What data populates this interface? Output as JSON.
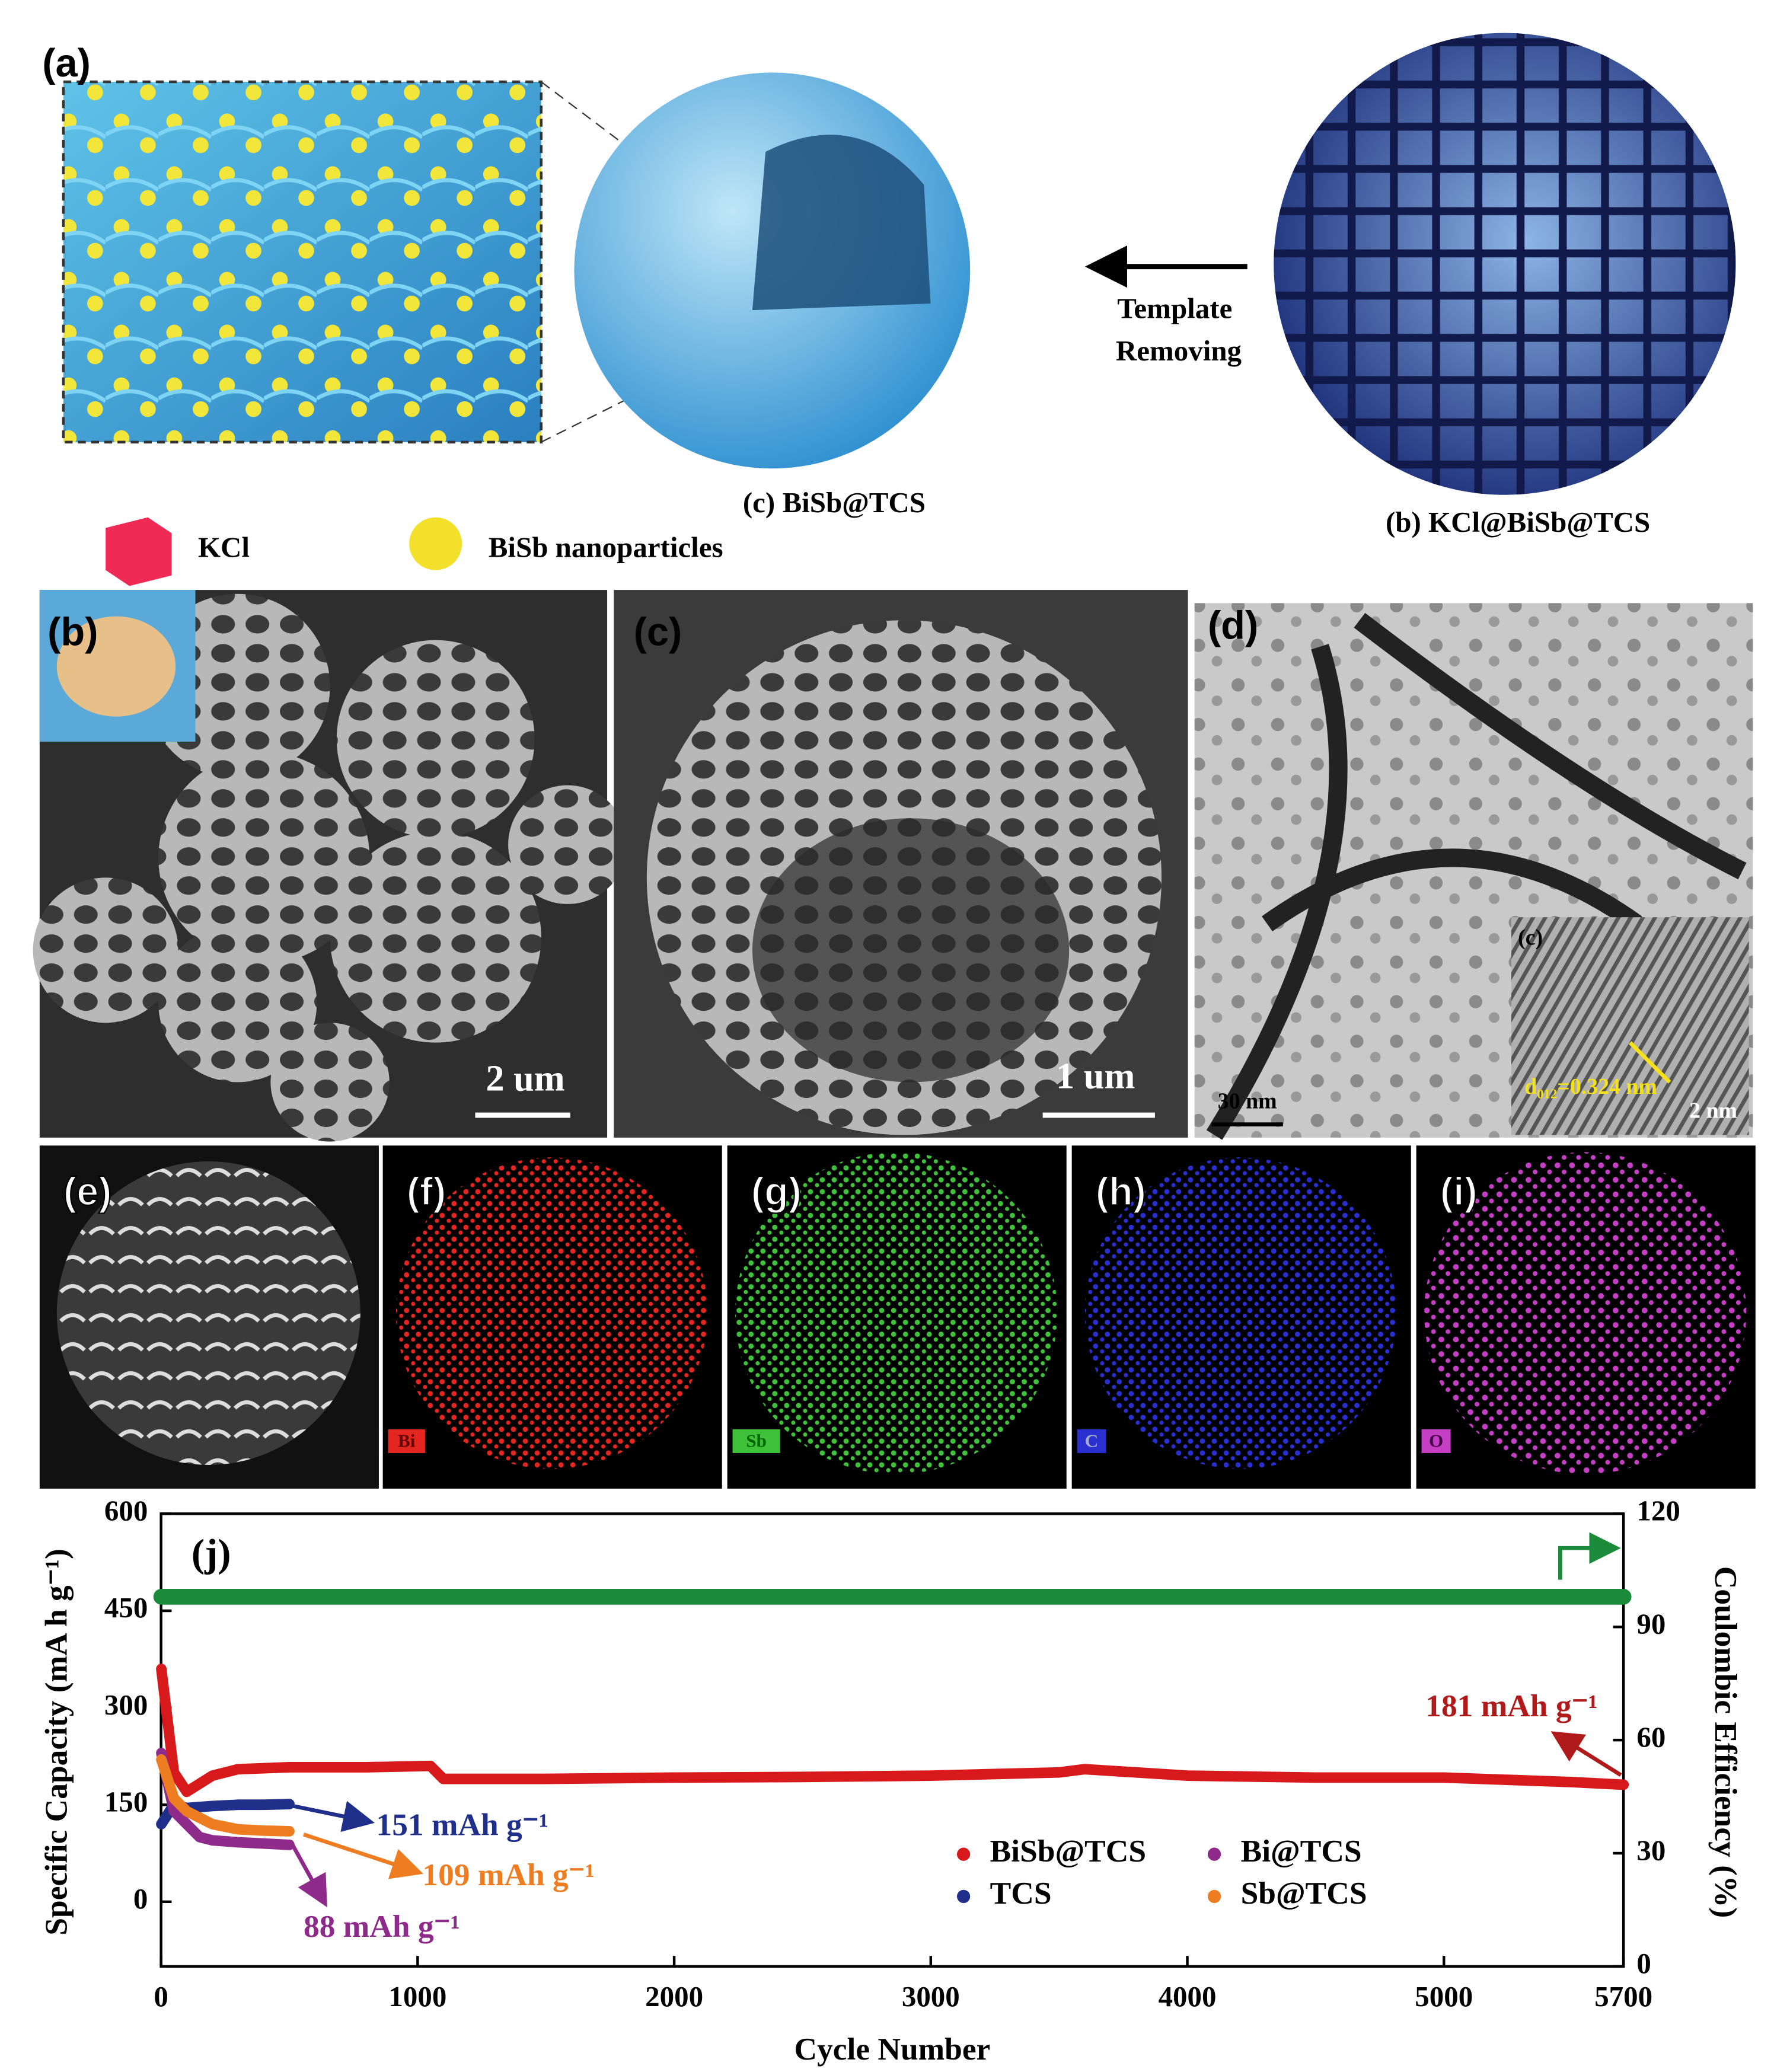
{
  "figure": {
    "schematic": {
      "arrow_label": [
        "Template",
        "Removing"
      ],
      "sphere_c": "(c) BiSb@TCS",
      "sphere_b": "(b) KCl@BiSb@TCS",
      "legend": [
        "KCl",
        "BiSb nanoparticles"
      ]
    },
    "labels": [
      "(a)",
      "(b)",
      "(c)",
      "(d)",
      "(c)",
      "(e)",
      "(f)",
      "(g)",
      "(h)",
      "(i)"
    ],
    "scale_bars": [
      "2 um",
      "1 um",
      "30 nm",
      "2 nm"
    ],
    "d_spacing": "d₀₁₂=0.324 nm",
    "eds": [
      "Bi",
      "Sb",
      "C",
      "O"
    ]
  },
  "chart_data": {
    "type": "line",
    "panel_label": "(j)",
    "x_label": "Cycle Number",
    "y_label": "Specific Capacity (mA h g⁻¹)",
    "y2_label": "Coulombic Efficiency (%)",
    "xlim": [
      0,
      5700
    ],
    "xticks": [
      0,
      1000,
      2000,
      3000,
      4000,
      5000,
      5700
    ],
    "ylim": [
      -100,
      600
    ],
    "yticks": [
      0,
      150,
      300,
      450,
      600
    ],
    "y2lim": [
      0,
      120
    ],
    "y2ticks": [
      0,
      30,
      60,
      90,
      120
    ],
    "series": [
      {
        "name": "BiSb@TCS",
        "color": "#d7191c",
        "x": [
          1,
          50,
          100,
          200,
          300,
          500,
          800,
          1050,
          1100,
          1500,
          2000,
          2500,
          3000,
          3500,
          3600,
          4000,
          4500,
          5000,
          5500,
          5700
        ],
        "values": [
          360,
          200,
          170,
          195,
          205,
          208,
          208,
          210,
          190,
          190,
          192,
          193,
          195,
          200,
          205,
          195,
          192,
          192,
          185,
          181
        ]
      },
      {
        "name": "TCS",
        "color": "#1f2f8a",
        "x": [
          1,
          50,
          100,
          200,
          300,
          400,
          500
        ],
        "values": [
          120,
          150,
          145,
          148,
          150,
          150,
          151
        ]
      },
      {
        "name": "Bi@TCS",
        "color": "#8e2a8a",
        "x": [
          1,
          50,
          100,
          150,
          200,
          300,
          400,
          500
        ],
        "values": [
          230,
          140,
          120,
          100,
          95,
          92,
          90,
          88
        ]
      },
      {
        "name": "Sb@TCS",
        "color": "#ee7d22",
        "x": [
          1,
          50,
          100,
          200,
          300,
          400,
          500
        ],
        "values": [
          220,
          160,
          140,
          120,
          112,
          110,
          109
        ]
      },
      {
        "color": "#1b8a3a",
        "axis": "y2",
        "x": [
          1,
          100,
          500,
          1000,
          1500,
          2000,
          2500,
          3000,
          3500,
          4000,
          4500,
          5000,
          5500,
          5700
        ],
        "values": [
          98,
          98,
          98,
          98,
          98,
          98,
          98,
          98,
          98,
          98,
          98,
          98,
          98,
          98
        ]
      }
    ],
    "annotations": [
      {
        "text": "151 mAh g⁻¹",
        "color": "#1f2f8a"
      },
      {
        "text": "109 mAh g⁻¹",
        "color": "#ee7d22"
      },
      {
        "text": "88 mAh g⁻¹",
        "color": "#8e2a8a"
      },
      {
        "text": "181 mAh g⁻¹",
        "color": "#b01a1a"
      }
    ]
  }
}
